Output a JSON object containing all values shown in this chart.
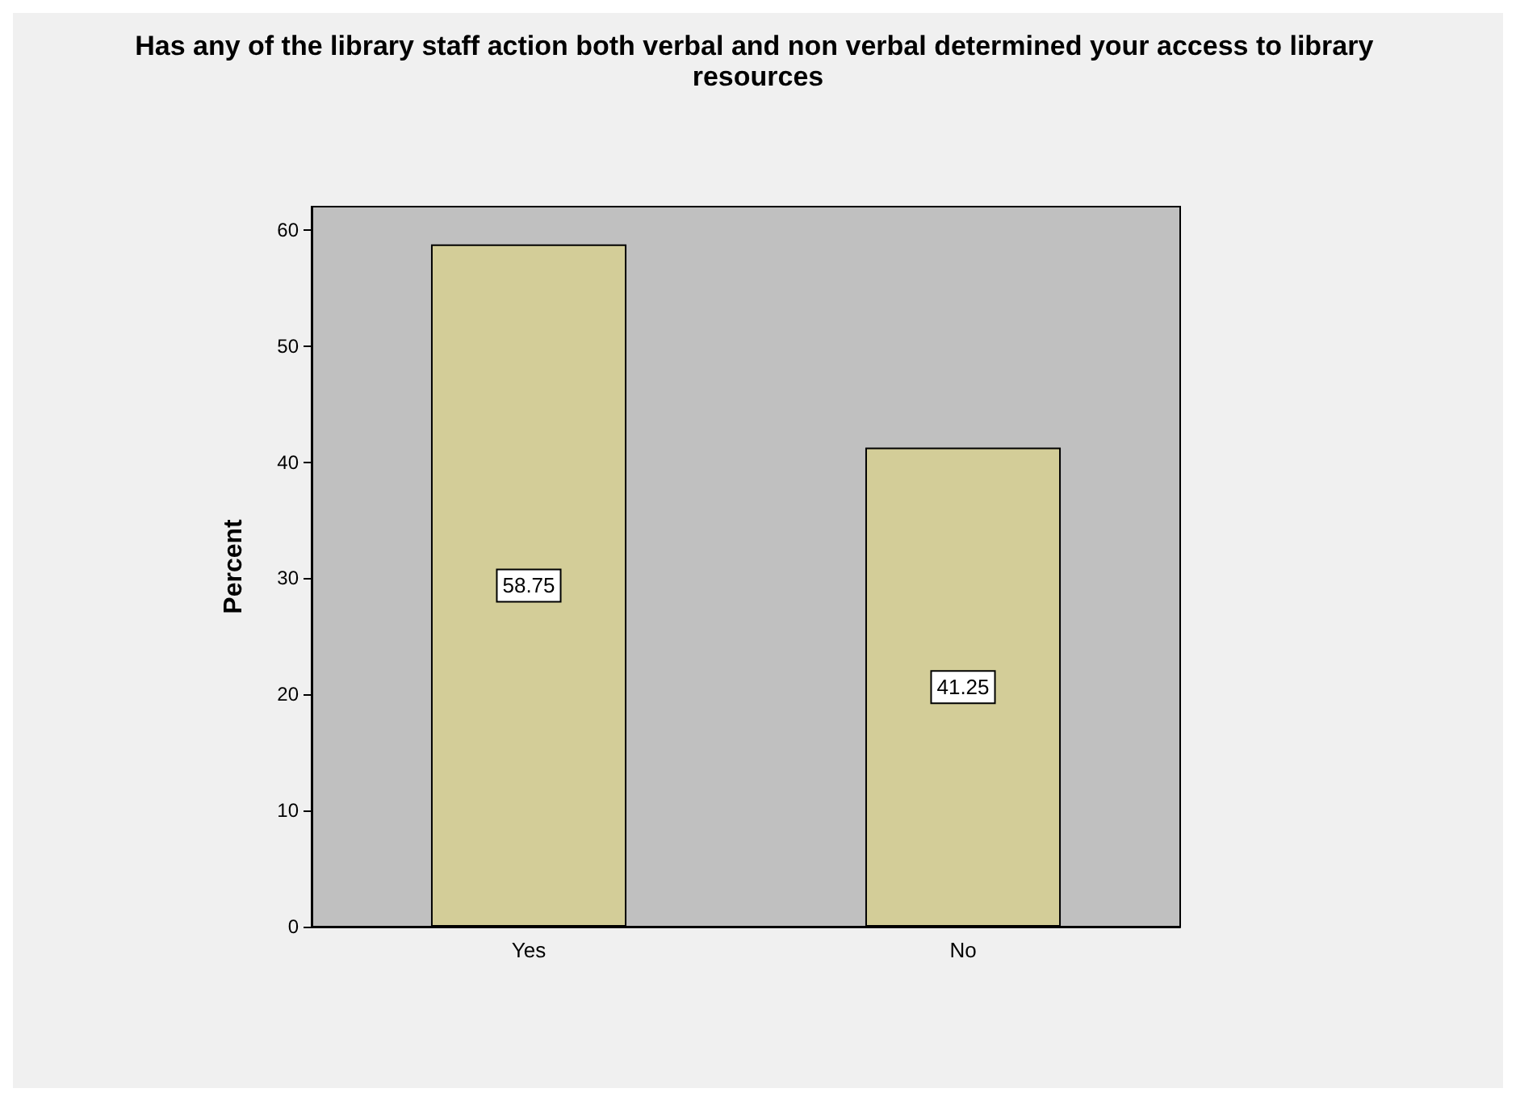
{
  "chart_data": {
    "type": "bar",
    "title": "Has any of the library staff action both verbal and non verbal determined your access to library resources",
    "ylabel": "Percent",
    "categories": [
      "Yes",
      "No"
    ],
    "values": [
      58.75,
      41.25
    ],
    "color": "#d3cd98",
    "ylim": [
      0,
      62
    ],
    "yticks": [
      0,
      10,
      20,
      30,
      40,
      50,
      60
    ],
    "data_labels": true,
    "grid": false
  }
}
